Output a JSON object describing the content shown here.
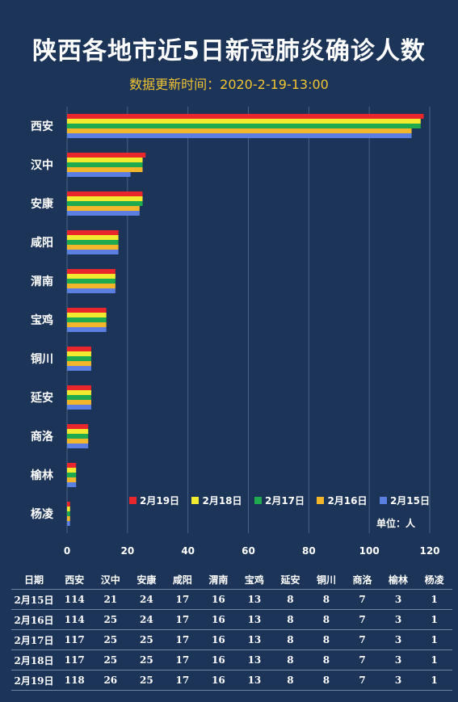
{
  "title": "陕西各地市近5日新冠肺炎确诊人数",
  "subtitle": "数据更新时间：2020-2-19-13:00",
  "unit_label": "单位：人",
  "chart_data": {
    "type": "bar",
    "orientation": "horizontal",
    "categories": [
      "西安",
      "汉中",
      "安康",
      "咸阳",
      "渭南",
      "宝鸡",
      "铜川",
      "延安",
      "商洛",
      "榆林",
      "杨凌"
    ],
    "series": [
      {
        "name": "2月19日",
        "color": "#e8262b",
        "values": [
          118,
          26,
          25,
          17,
          16,
          13,
          8,
          8,
          7,
          3,
          1
        ]
      },
      {
        "name": "2月18日",
        "color": "#f2ea2e",
        "values": [
          117,
          25,
          25,
          17,
          16,
          13,
          8,
          8,
          7,
          3,
          1
        ]
      },
      {
        "name": "2月17日",
        "color": "#1faa4f",
        "values": [
          117,
          25,
          25,
          17,
          16,
          13,
          8,
          8,
          7,
          3,
          1
        ]
      },
      {
        "name": "2月16日",
        "color": "#f3b62b",
        "values": [
          114,
          25,
          24,
          17,
          16,
          13,
          8,
          8,
          7,
          3,
          1
        ]
      },
      {
        "name": "2月15日",
        "color": "#5b7fe0",
        "values": [
          114,
          21,
          24,
          17,
          16,
          13,
          8,
          8,
          7,
          3,
          1
        ]
      }
    ],
    "xlim": [
      0,
      120
    ],
    "xticks": [
      0,
      20,
      40,
      60,
      80,
      100,
      120
    ],
    "grid": true,
    "legend_position": "bottom-right"
  },
  "table": {
    "header": [
      "日期",
      "西安",
      "汉中",
      "安康",
      "咸阳",
      "渭南",
      "宝鸡",
      "延安",
      "铜川",
      "商洛",
      "榆林",
      "杨凌"
    ],
    "rows": [
      [
        "2月15日",
        "114",
        "21",
        "24",
        "17",
        "16",
        "13",
        "8",
        "8",
        "7",
        "3",
        "1"
      ],
      [
        "2月16日",
        "114",
        "25",
        "24",
        "17",
        "16",
        "13",
        "8",
        "8",
        "7",
        "3",
        "1"
      ],
      [
        "2月17日",
        "117",
        "25",
        "25",
        "17",
        "16",
        "13",
        "8",
        "8",
        "7",
        "3",
        "1"
      ],
      [
        "2月18日",
        "117",
        "25",
        "25",
        "17",
        "16",
        "13",
        "8",
        "8",
        "7",
        "3",
        "1"
      ],
      [
        "2月19日",
        "118",
        "26",
        "25",
        "17",
        "16",
        "13",
        "8",
        "8",
        "7",
        "3",
        "1"
      ]
    ]
  }
}
